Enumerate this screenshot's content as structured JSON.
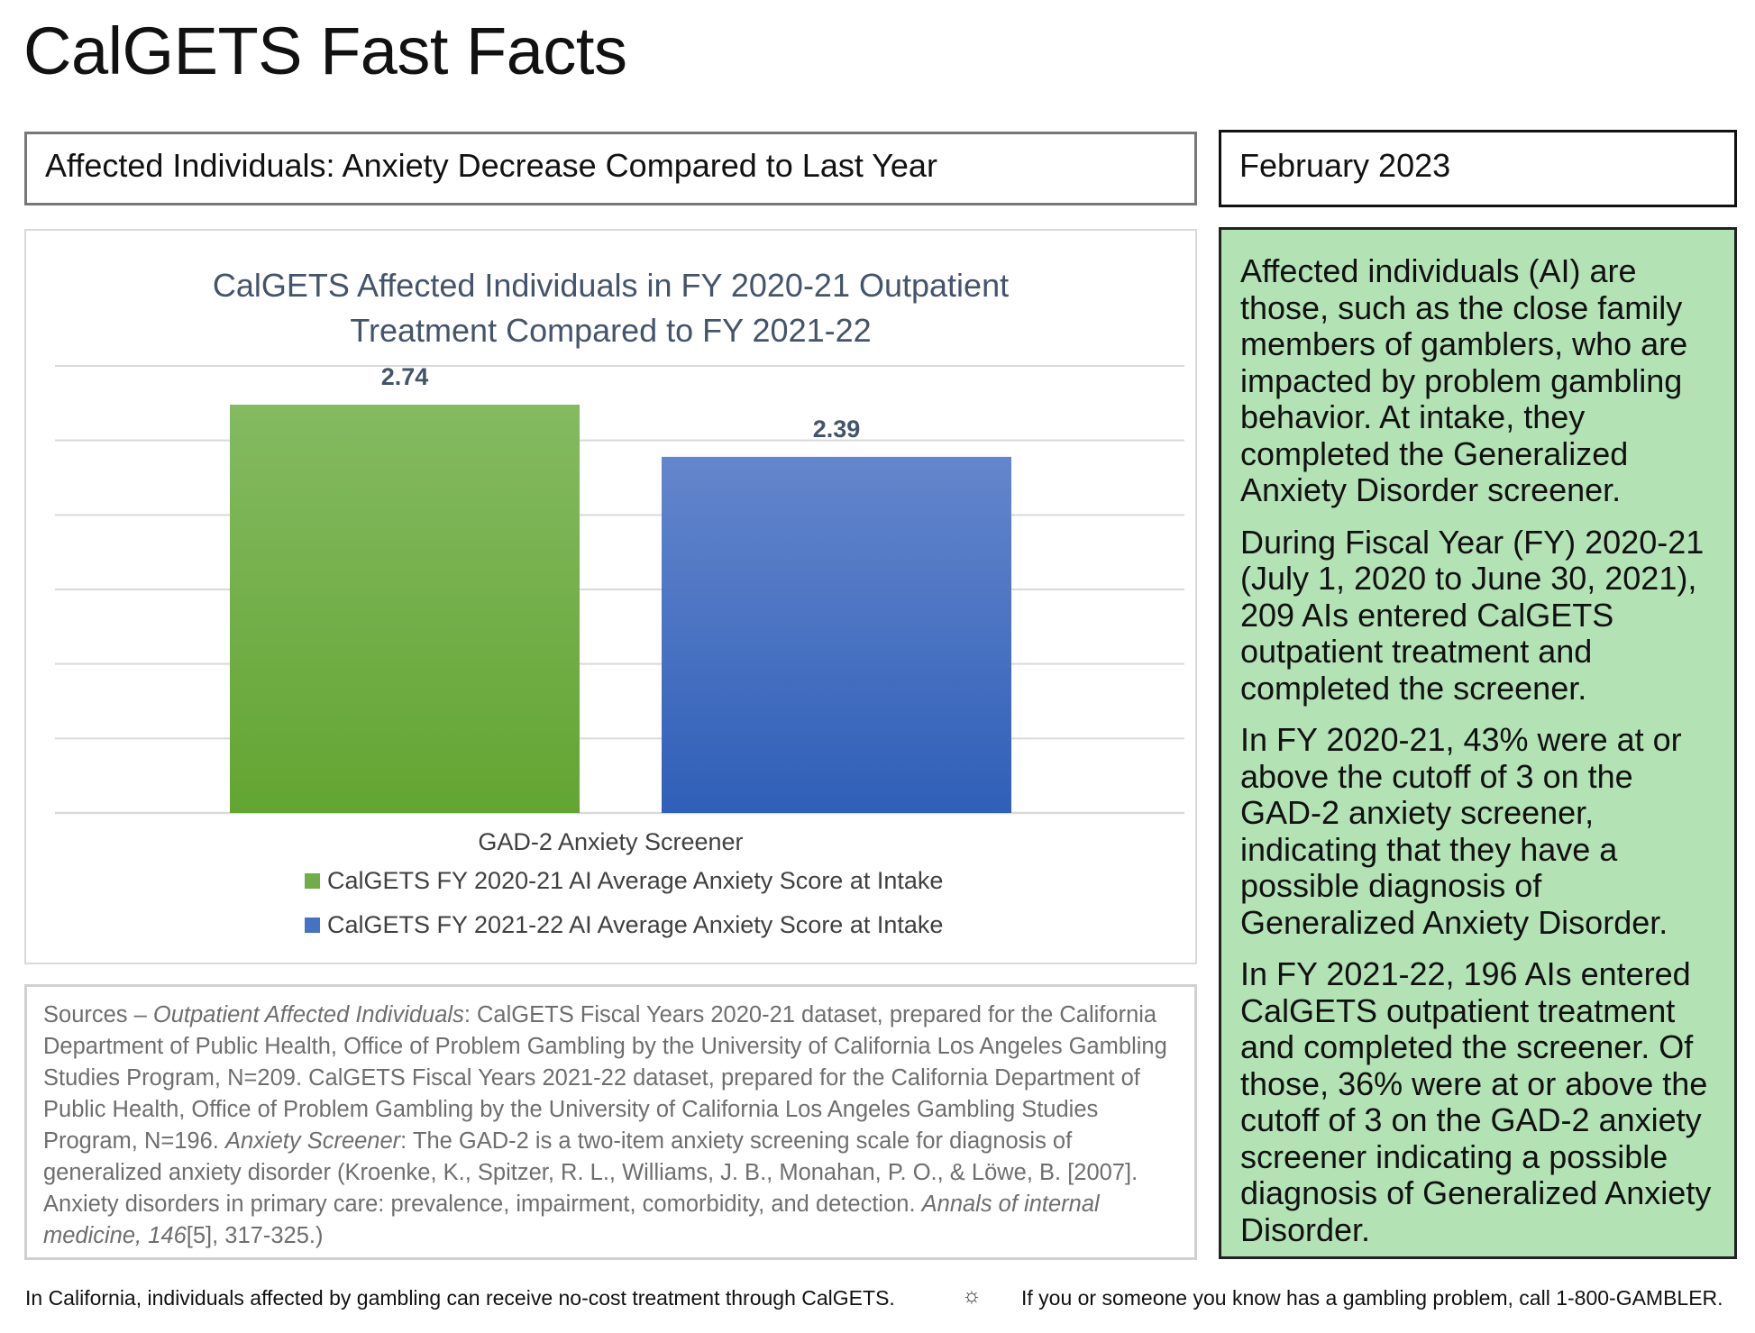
{
  "page": {
    "title": "CalGETS Fast Facts",
    "subtitle": "Affected Individuals: Anxiety Decrease Compared to Last Year",
    "date": "February 2023"
  },
  "chart_data": {
    "type": "bar",
    "title": "CalGETS Affected Individuals in FY 2020-21 Outpatient Treatment Compared to FY 2021-22",
    "title_lines": [
      "CalGETS Affected Individuals in FY 2020-21 Outpatient",
      "Treatment Compared to FY 2021-22"
    ],
    "xlabel": "GAD-2 Anxiety Screener",
    "ylabel": "",
    "ylim": [
      0,
      3
    ],
    "grid": true,
    "legend_position": "bottom",
    "series": [
      {
        "name": "CalGETS FY 2020-21 AI Average Anxiety Score at Intake",
        "values": [
          2.74
        ],
        "label": "2.74",
        "color": "#70ad47"
      },
      {
        "name": "CalGETS FY 2021-22 AI Average Anxiety Score at Intake",
        "values": [
          2.39
        ],
        "label": "2.39",
        "color": "#4472c4"
      }
    ]
  },
  "sources": {
    "lead": "Sources – ",
    "s1_italic": "Outpatient Affected Individuals",
    "s1_text": ": CalGETS Fiscal Years 2020-21 dataset, prepared for the California Department of Public Health, Office of Problem Gambling by the University of California Los Angeles Gambling Studies Program, N=209.  CalGETS Fiscal Years 2021-22 dataset, prepared for the California Department of Public Health, Office of Problem Gambling by the University of California Los Angeles Gambling Studies Program, N=196.  ",
    "s2_italic": "Anxiety Screener",
    "s2_text": ": The GAD-2 is a two-item anxiety screening scale for diagnosis of generalized anxiety disorder (Kroenke, K., Spitzer, R. L., Williams, J. B., Monahan, P. O., & Löwe, B. [2007]. Anxiety disorders in primary care: prevalence, impairment, comorbidity, and detection. ",
    "s3_italic": "Annals of internal medicine, 146",
    "s3_text": "[5], 317-325.)"
  },
  "facts": {
    "p1": "Affected individuals (AI) are those, such as the close family members of gamblers, who are impacted by problem gambling behavior. At intake, they completed the Generalized Anxiety Disorder screener.",
    "p2": "During Fiscal Year (FY) 2020-21 (July 1, 2020 to June 30, 2021), 209 AIs entered CalGETS outpatient treatment and completed the screener.",
    "p3": "In FY 2020-21, 43% were at or above the cutoff of 3 on the GAD-2 anxiety screener, indicating that they have a possible diagnosis of Generalized Anxiety Disorder.",
    "p4": "In FY 2021-22, 196 AIs entered CalGETS outpatient treatment and completed the screener. Of those, 36% were at or above the cutoff of 3 on the GAD-2 anxiety screener indicating a possible diagnosis of Generalized Anxiety Disorder."
  },
  "footer": {
    "left": "In California, individuals affected by gambling can receive no-cost treatment through CalGETS.",
    "separator": "☼",
    "right": "If you or someone you know has a gambling problem, call 1-800-GAMBLER."
  }
}
